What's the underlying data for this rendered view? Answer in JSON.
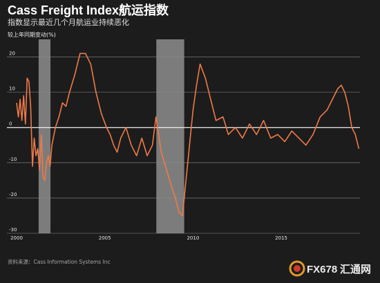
{
  "chart_data": {
    "type": "line",
    "title": "Cass Freight Index航运指数",
    "subtitle": "指数显示最近几个月航运业持续恶化",
    "ylabel": "较上年同期变动(%)",
    "ylim": [
      -30,
      25
    ],
    "yticks": [
      20,
      10,
      0,
      -10,
      -20,
      -30
    ],
    "xlim": [
      2000,
      2019.5
    ],
    "xticks": [
      2000,
      2005,
      2010,
      2015
    ],
    "grid": "horizontal",
    "shaded_periods": [
      [
        2001.25,
        2001.92
      ],
      [
        2007.92,
        2009.5
      ]
    ],
    "line_color": "#f07a47",
    "series": [
      {
        "name": "",
        "x": [
          2000.0,
          2000.1,
          2000.2,
          2000.3,
          2000.4,
          2000.5,
          2000.6,
          2000.7,
          2000.8,
          2000.9,
          2001.0,
          2001.1,
          2001.2,
          2001.3,
          2001.4,
          2001.5,
          2001.6,
          2001.7,
          2001.8,
          2001.9,
          2002.0,
          2002.2,
          2002.4,
          2002.6,
          2002.8,
          2003.0,
          2003.3,
          2003.6,
          2003.9,
          2004.2,
          2004.5,
          2004.8,
          2005.1,
          2005.3,
          2005.5,
          2005.7,
          2005.9,
          2006.2,
          2006.5,
          2006.8,
          2007.1,
          2007.4,
          2007.7,
          2007.9,
          2008.2,
          2008.5,
          2008.8,
          2009.0,
          2009.2,
          2009.4,
          2009.6,
          2009.8,
          2010.0,
          2010.2,
          2010.4,
          2010.7,
          2011.0,
          2011.3,
          2011.7,
          2012.0,
          2012.4,
          2012.8,
          2013.2,
          2013.6,
          2014.0,
          2014.4,
          2014.8,
          2015.2,
          2015.6,
          2016.0,
          2016.4,
          2016.8,
          2017.2,
          2017.6,
          2017.9,
          2018.2,
          2018.4,
          2018.6,
          2018.8,
          2019.0,
          2019.2,
          2019.4
        ],
        "values": [
          7,
          3,
          8,
          2,
          9,
          1,
          14,
          13,
          6,
          -11,
          -3,
          -8,
          -6,
          -12,
          -2,
          -14,
          -15,
          -10,
          -8,
          -11,
          -5,
          0,
          3,
          7,
          6,
          10,
          15,
          21,
          21,
          18,
          10,
          4,
          0,
          -2,
          -5,
          -7,
          -3,
          0,
          -5,
          -8,
          -3,
          -8,
          -5,
          3,
          -7,
          -12,
          -17,
          -20,
          -24,
          -25,
          -15,
          -5,
          5,
          12,
          18,
          14,
          8,
          2,
          3,
          -2,
          0,
          -3,
          1,
          -2,
          2,
          -3,
          -2,
          -4,
          -1,
          -3,
          -5,
          -2,
          3,
          5,
          8,
          11,
          12,
          10,
          6,
          0,
          -2,
          -6
        ]
      }
    ],
    "source": "资料来源：Cass Information Systems Inc"
  },
  "watermark": {
    "text": "FX678",
    "text_cn": "汇通网"
  }
}
